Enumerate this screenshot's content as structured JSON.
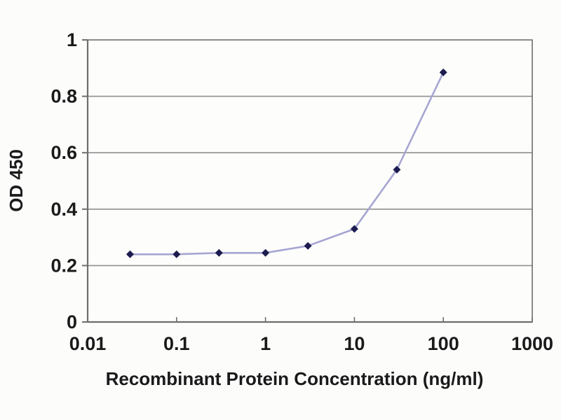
{
  "chart_data": {
    "type": "line",
    "title": "",
    "xlabel": "Recombinant Protein Concentration (ng/ml)",
    "ylabel": "OD 450",
    "series": [
      {
        "name": "OD 450",
        "x": [
          0.03,
          0.1,
          0.3,
          1,
          3,
          10,
          30,
          100
        ],
        "y": [
          0.24,
          0.24,
          0.245,
          0.245,
          0.27,
          0.33,
          0.54,
          0.885
        ]
      }
    ],
    "xscale": "log",
    "xlim": [
      0.01,
      1000
    ],
    "ylim": [
      0,
      1
    ],
    "xtick_values": [
      0.01,
      0.1,
      1,
      10,
      100,
      1000
    ],
    "xtick_labels": [
      "0.01",
      "0.1",
      "1",
      "10",
      "100",
      "1000"
    ],
    "ytick_values": [
      0,
      0.2,
      0.4,
      0.6,
      0.8,
      1
    ],
    "ytick_labels": [
      "0",
      "0.2",
      "0.4",
      "0.6",
      "0.8",
      "1"
    ],
    "grid": "horizontal",
    "legend_position": "none",
    "marker_shape": "diamond",
    "colors": {
      "line": "#a6a6d2",
      "marker": "#1c1c50",
      "grid": "#8f8f8f",
      "axis": "#6e6e6e",
      "text": "#1a1a1a",
      "plot_background": "#fdfdfc",
      "figure_background": "#fcfcfb"
    }
  }
}
